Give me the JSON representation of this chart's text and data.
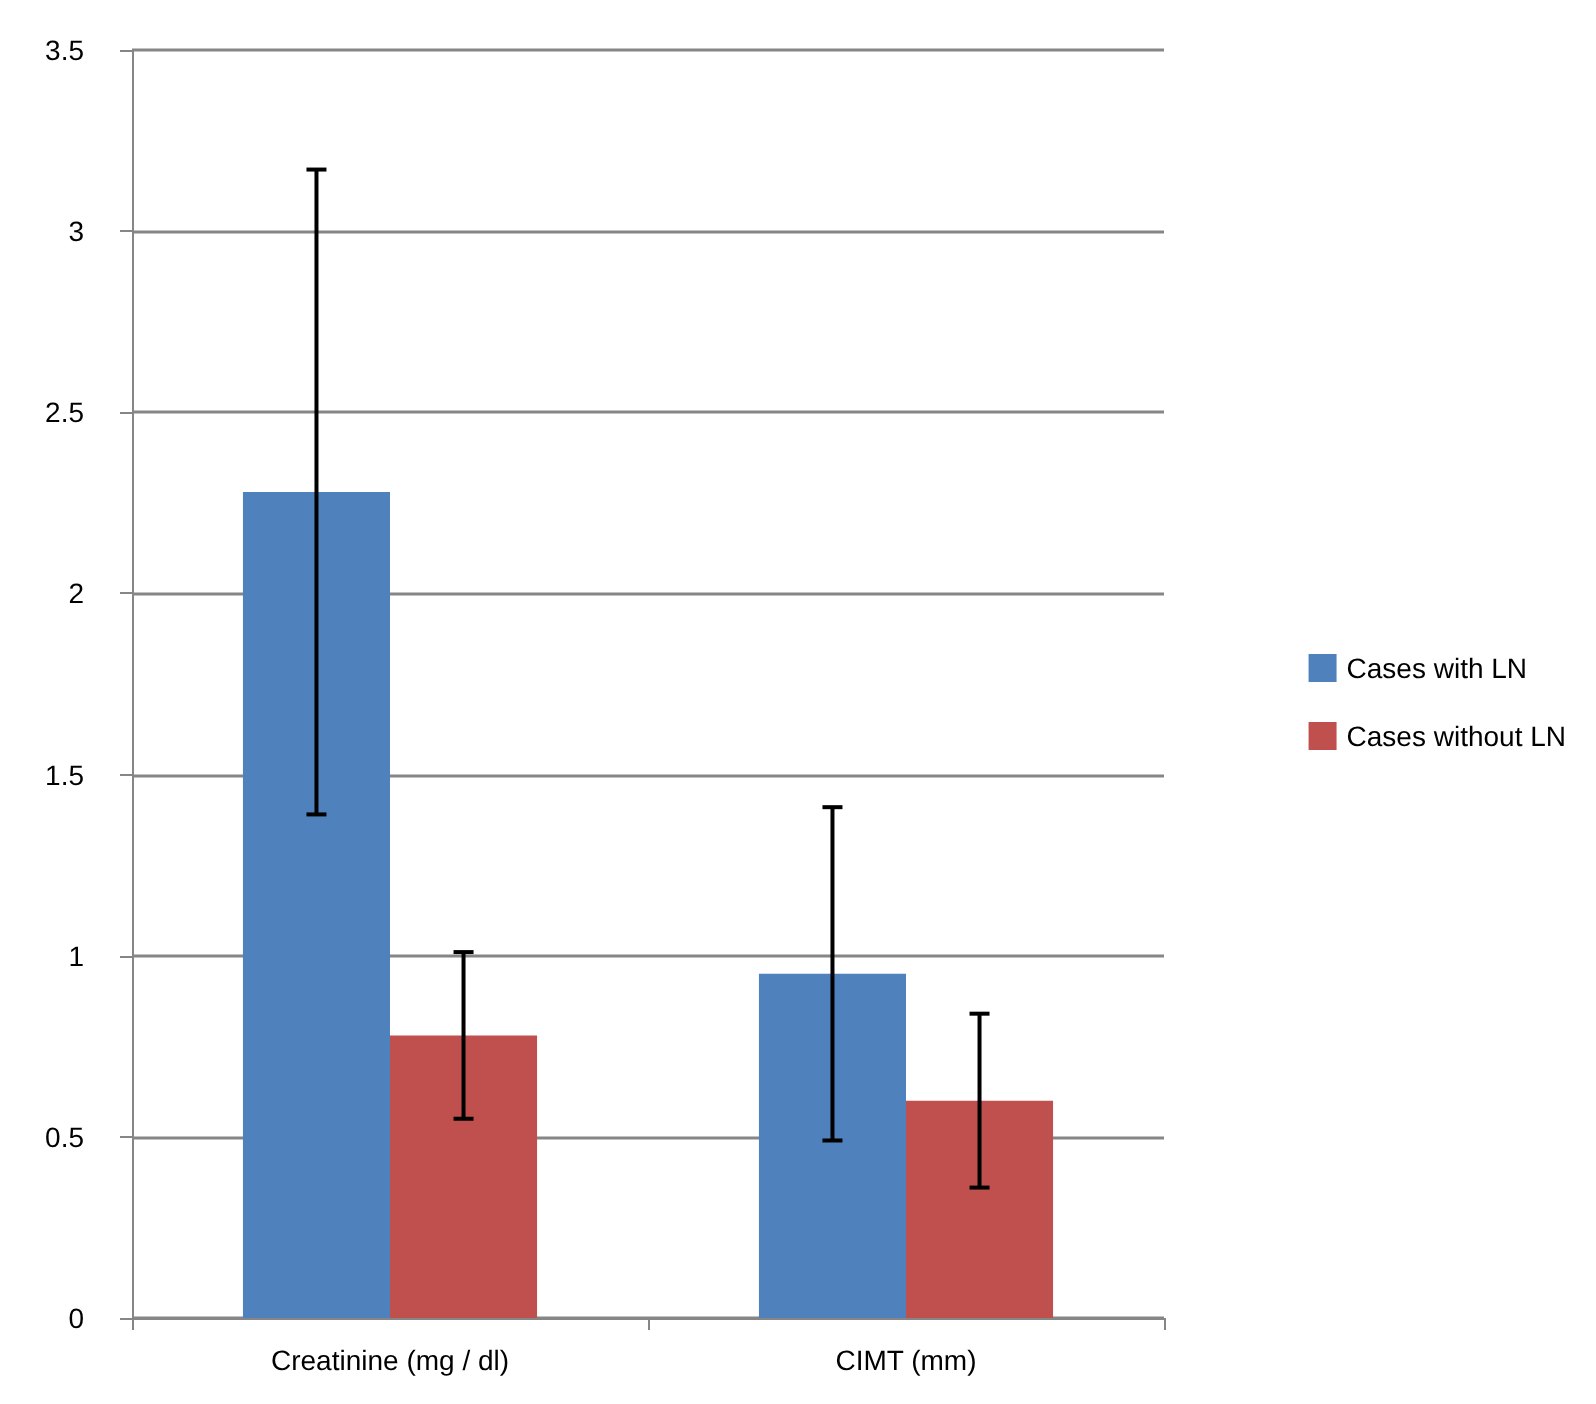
{
  "chart_data": {
    "type": "bar",
    "categories": [
      "Creatinine (mg / dl)",
      "CIMT (mm)"
    ],
    "series": [
      {
        "name": "Cases with LN",
        "color": "#4f81bd",
        "values": [
          2.28,
          0.95
        ],
        "errors": [
          0.89,
          0.46
        ]
      },
      {
        "name": "Cases without LN",
        "color": "#c0504d",
        "values": [
          0.78,
          0.6
        ],
        "errors": [
          0.23,
          0.24
        ]
      }
    ],
    "ylim": [
      0,
      3.5
    ],
    "yticks": [
      0,
      0.5,
      1,
      1.5,
      2,
      2.5,
      3,
      3.5
    ],
    "grid": "y",
    "legend": "right"
  }
}
